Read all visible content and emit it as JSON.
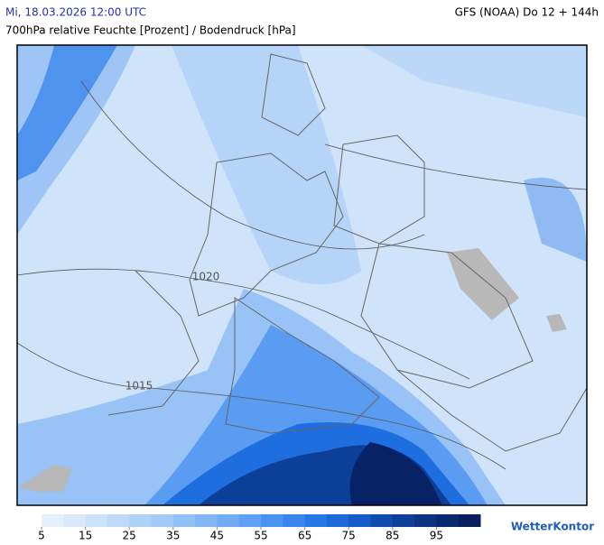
{
  "header": {
    "valid_time": "Mi, 18.03.2026 12:00 UTC",
    "model_run": "GFS (NOAA) Do 12 + 144h",
    "subtitle": "700hPa relative Feuchte [Prozent] / Bodendruck [hPa]"
  },
  "map": {
    "isobar_labels": [
      {
        "text": "1020"
      },
      {
        "text": "1015"
      }
    ]
  },
  "legend": {
    "range": [
      5,
      105
    ],
    "ticks": [
      5,
      15,
      25,
      35,
      45,
      55,
      65,
      75,
      85,
      95
    ],
    "colors": [
      "#e6f0fc",
      "#d9e9fb",
      "#cce2fa",
      "#bfdaf9",
      "#b1d2f8",
      "#a3caf7",
      "#93c0f6",
      "#82b6f5",
      "#70abf4",
      "#5ea0f3",
      "#4b93f1",
      "#3886ee",
      "#2777e6",
      "#1b68d8",
      "#155ac6",
      "#104cb0",
      "#0d3f98",
      "#0b3382",
      "#0a286f",
      "#081e5e"
    ]
  },
  "brand": "WetterKontor"
}
